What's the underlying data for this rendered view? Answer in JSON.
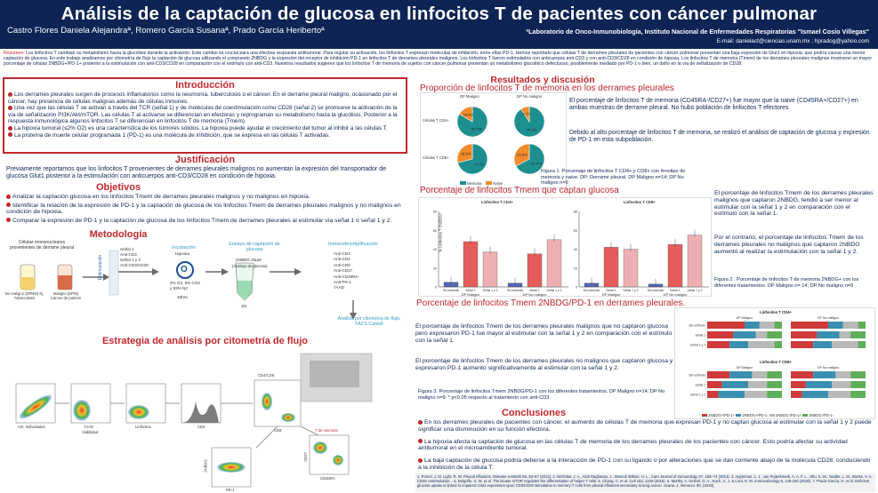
{
  "header": {
    "title": "Análisis de la captación de glucosa en linfocitos T de pacientes con cáncer pulmonar",
    "authors": "Castro Flores Daniela Alejandraª, Romero García Susanaª, Prado García Heribertoª",
    "lab": "ªLaboratorio de Onco-Inmunobiología, Instituto Nacional de Enfermedades Respiratorias \"Ismael Cosío Villegas\"",
    "email": "E-mail: danielacf@ciencias.unam.mx ; hpradog@yahoo.com"
  },
  "abstract": {
    "label": "Resumen:",
    "text": "Los linfocitos T cambian su metabolismo hacia la glucólisis durante la activación. Este cambio es crucial para una efectiva respuesta antitumoral. Para regular su activación, los linfocitos T expresan moléculas de inhibición, entre ellas PD-1. Hemos reportado que células T de derrames pleurales de pacientes con cáncer pulmonar presentan una baja expresión de Glut1 en hipoxia, que podría causar una menor captación de glucosa. En este trabajo analizamos por citometría de flujo la captación de glucosa utilizando el compuesto 2NBDG y la expresión del receptor de inhibición PD-1 en linfocitos T de derrames pleurales malignos. Los linfocitos T fueron estimulados con anticuerpos anti-CD3 y con anti-CD3/CD28 en condición de hipoxia. Los linfocitos T de memoria (Tmem) de los derrames pleurales malignos mostraron un mayor porcentaje de células 2NBDG+/PD-1+ posterior a la estimulación con anti-CD3/CD28 en comparación con el estímulo con anti-CD3. Nuestros resultados sugieren que los linfocitos T de memoria de sujetos con cáncer pulmonar presentan un metabolismo glucolítico defectuoso, posiblemente mediado por PD-1 o bien, un daño en la vía de señalización de CD28."
  },
  "intro": {
    "title": "Introducción",
    "p1": "Los derrames pleurales surgen de procesos inflamatorios como la neumonía, tuberculosis o el cáncer. En el derrame pleural maligno, ocasionado por el cáncer, hay presencia de células malignas además de células inmunes.",
    "p2": "Una vez que las células T se activan a través del TCR (señal 1) y de moléculas de coestimulación como CD28 (señal 2) se promueve la activación de la vía de señalización PI3K/Akt/mTOR. Las células T al activarse se diferencian en efectoras y reprograman su metabolismo hacia la glucólisis. Posterior a la respuesta inmunológica algunos linfocitos T se diferencian en linfocitos T de memoria (Tmem).",
    "p3": "La hipoxia tumoral (≤2% O2) es una característica de los tumores sólidos. La hipoxia puede ayudar el crecimiento del tumor al inhibir a las células T.",
    "p4": "La proteína de muerte celular programada 1 (PD-1) es una molécula de inhibición, que se expresa en las células T activadas."
  },
  "justificacion": {
    "title": "Justificación",
    "text": "Previamente reportamos que los linfocitos T provenientes de derrames pleurales malignos no aumentan la expresión del transportador de glucosa Glut1 posterior a la estimulación con anticuerpos anti-CD3/CD28 en condición de hipoxia."
  },
  "objetivos": {
    "title": "Objetivos",
    "items": [
      "Analizar la captación glucosa en los linfocitos Tmem de derrames pleurales malignos y no malignos en hipoxia.",
      "Identificar la relación de la expresión de PD-1 y la captación de glucosa de los linfocitos Tmem de derrames pleurales malignos y no malignos en condición de hipoxia.",
      "Comparar la expresión de PD-1 y la captación de glucosa de los linfocitos Tmem de derrames pleurales al estimular vía señal 1 o señal 1 y 2."
    ]
  },
  "metodologia": {
    "title": "Metodología",
    "source_label": "Células mononucleares provenientes de derrame pleural",
    "no_maligno": "No maligno (DPNM) Ej. Tuberculosis",
    "maligno": "Maligno (DPM) Cáncer de pulmón",
    "estimulacion": "Estimulación",
    "stimuli": [
      "Señal 1",
      "Anti-CD3",
      "Señal 1 y 2",
      "Anti-CD3/CD28"
    ],
    "incubacion_title": "Incubación",
    "hipoxia": "Hipoxia",
    "o2": "O",
    "conditions": [
      "2% O2, 5% CO2",
      "y 93% N2"
    ],
    "time48": "48hrs.",
    "ensayo_title": "Ensayo de captación de glucosa",
    "nbdg": "2NBDG 20µM",
    "analogo": "(Análogo de glucosa)",
    "time1": "1hr.",
    "inmuno_title": "Inmunofenotipificación",
    "markers": [
      "Anti-CD3",
      "Anti-CD4",
      "Anti-CD8",
      "Anti-CD27",
      "Anti-CD45RA",
      "Anti-PD-1",
      "7AAD"
    ],
    "analysis": "Análisis por citometría de flujo, FACS Cantoll"
  },
  "estrategia": {
    "title": "Estrategia de análisis por citometría de flujo",
    "labels": [
      "Cel. Individuales",
      "7AAD",
      "Viabilidad",
      "Linfocitos",
      "CD3",
      "CD4/CD8",
      "CD8",
      "2NBDG",
      "PD-1",
      "CD27",
      "CD45RA",
      "T de memoria"
    ]
  },
  "resultados": {
    "title": "Resultados y discusión",
    "fig1_title": "Proporción de linfocitos T de memoria en los derrames pleurales",
    "fig1_cols": [
      "DP Maligno",
      "DP No maligno"
    ],
    "fig1_rows": [
      "Células T CD4+",
      "Células T CD8+"
    ],
    "fig1_legend": [
      "Memoria",
      "Naive"
    ],
    "fig1_text1": "El porcentaje de linfocitos T de memoria (CD45RA-/CD27+) fue mayor que la naive (CD45RA+/CD27+) en ambas muestras de derrame pleural. No hubo población de linfocitos T efectores",
    "fig1_text2": "Debido al alto porcentaje de linfocitos T de memoria, se realizó el análisis de captación de glucosa y expresión de PD-1 en esta subpoblación.",
    "fig1_caption": "Figura 1. Porcentaje de linfocitos T CD4+ y CD8+ con fenotipo de memoria y naive. DP: Derrame pleural. DP Maligno n=14; DP No maligno n=9",
    "fig2_title": "Porcentaje de linfocitos Tmem que captan glucosa",
    "fig2_text1": "El porcentaje de linfocitos Tmem de los derrames pleurales malignos que captaron 2NBDG, tendió a ser menor al estimular con la señal 1 y 2 en comparación con el estímulo con la señal 1.",
    "fig2_text2": "Por el contrario, el porcentaje de linfocitos Tmem de los derrames pleurales no malignos que captaron 2NBDG aumentó al realizar la estimulación con la señal 1 y 2.",
    "fig2_caption": "Figura 2 . Porcentaje de linfocitos T de memoria 2NBDG+ con los diferentes tratamientos. DP Maligno n= 14; DP No maligno n=9",
    "fig3_title": "Porcentaje de linfocitos Tmem 2NBDG/PD-1 en derrames pleurales.",
    "fig3_text1": "El porcentaje de linfocitos Tmem de los derrames pleurales malignos que no captaron glucosa pero expresaron PD-1 fue mayor al estimular con la señal 1 y 2 en comparación con el estímulo con la señal 1.",
    "fig3_text2": "El porcentaje de linfocitos Tmem de los derrames pleurales no malignos que captaron glucosa y expresaron PD-1 aumentó significativamente al estimular con la señal 1 y 2.",
    "fig3_caption": "Figura 3. Porcentaje de linfocitos Tmem 2NBDG/PD-1 con los diferentes tratamientos. DP Maligno n=14; DP No maligno n=9. * p<0.05 respecto al tratamiento con anti-CD3."
  },
  "chart_data": [
    {
      "type": "pie",
      "title": "Proporción de linfocitos T de memoria en los derrames pleurales",
      "categories": [
        "Memoria",
        "Naive"
      ],
      "series": [
        {
          "name": "Células T CD4+ / DP Maligno",
          "values": [
            83.6,
            16.4
          ]
        },
        {
          "name": "Células T CD4+ / DP No maligno",
          "values": [
            90.9,
            9.1
          ]
        },
        {
          "name": "Células T CD8+ / DP Maligno",
          "values": [
            71.1,
            28.9
          ]
        },
        {
          "name": "Células T CD8+ / DP No maligno",
          "values": [
            67.2,
            32.8
          ]
        }
      ]
    },
    {
      "type": "bar",
      "title": "Linfocitos T CD4+",
      "ylabel": "% Linfocitos T 2NBDG+",
      "ylim": [
        0,
        80
      ],
      "groups": [
        "DP Maligno",
        "DP No maligno"
      ],
      "categories": [
        "Sin estímulo",
        "Señal 1",
        "Señal 1 y 2"
      ],
      "series": [
        {
          "name": "DP Maligno",
          "values": [
            5,
            48,
            37
          ]
        },
        {
          "name": "DP No maligno",
          "values": [
            4,
            35,
            50
          ]
        }
      ]
    },
    {
      "type": "bar",
      "title": "Linfocitos T CD8+",
      "ylabel": "% Linfocitos T 2NBDG+",
      "ylim": [
        0,
        80
      ],
      "groups": [
        "DP Maligno",
        "DP No maligno"
      ],
      "categories": [
        "Sin estímulo",
        "Señal 1",
        "Señal 1 y 2"
      ],
      "series": [
        {
          "name": "DP Maligno",
          "values": [
            4,
            42,
            40
          ]
        },
        {
          "name": "DP No maligno",
          "values": [
            3,
            45,
            55
          ]
        }
      ]
    },
    {
      "type": "bar",
      "title": "Linfocitos T CD4+ / CD8+",
      "groups": [
        "DP Maligno",
        "DP No maligno"
      ],
      "categories": [
        "Sin estímulo",
        "Señal 1",
        "Señal 1 y 2"
      ],
      "legend": [
        "2NBDG+/PD-1+",
        "2NBDG+/PD-1-",
        "2NBDG-/PD-1+",
        "2NBDG-/PD-1-"
      ],
      "colors": [
        "#cf3a3a",
        "#3a8fb0",
        "#b9b9b9",
        "#5fae58"
      ]
    }
  ],
  "conclusiones": {
    "title": "Conclusiones",
    "items": [
      "En los derrames pleurales de pacientes con cáncer, el aumento de células T de memoria que expresan PD-1 y no captan glucosa al estimular con la señal 1 y 2 puede significar una disminución en su función efectora.",
      "La hipoxia afecta la captación de glucosa en las células T de memoria de los derrames pleurales de los pacientes con cáncer. Esto podría afectar su actividad antitumoral en el microambiente tumoral.",
      "La baja captación de glucosa podría deberse a la interacción de PD-1 con su ligando o por alteraciones que se dan corriente abajo de la molécula CD28, conduciendo a la inhibición de la célula T."
    ]
  },
  "referencias": "1. Porcel, J. M. Light, R. W. Pleural effusions. Disease-a-Month 59, 29–57 (2013). 2. Nicholas, J. A., Alok Raghavan, J., Marcus Wilson, H. L., Cam Journal of Immunology 27, 163–74 (2014). 3. Appleman, L. J., van Puijenbroek, A. A. F. L., Shu, K. M., Nadler, L. M., Boriss, V. A. CD28 costimulation... 4. Delgoffe, G. M. et al. The kinase mTOR regulates the differentiation of helper T cells. 5. Chang, C. et al. Cell 162, 1229 (2015). 6. Murthy, A. Gerbel, G. A., Koch, C. J. & Lord, E. M. Immunobiology 5, 148-160 (2018). 7. Prado-García, H. et al. Deficient glucose uptake is linked to impaired Glut1 expression upon CD3/CD28 stimulation in memory T cells from pleural effusions secondary to lung cancer. Scand. J. Immunol. 90, (2019)."
}
